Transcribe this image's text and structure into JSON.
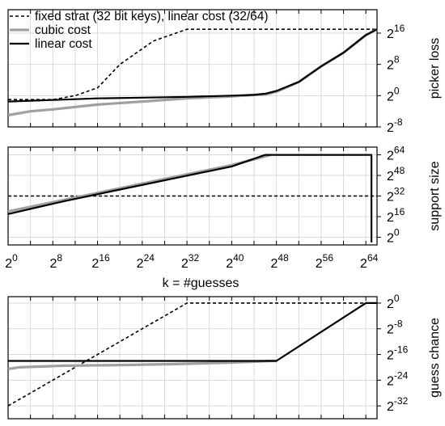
{
  "colors": {
    "fixed": "#000000",
    "cubic": "#a0a0a0",
    "linear": "#000000",
    "grid": "#d9d9d9",
    "frame": "#000000"
  },
  "legend": [
    {
      "key": "fixed",
      "label": "fixed strat (32 bit keys), linear cost (32/64)",
      "style": "dashed"
    },
    {
      "key": "cubic",
      "label": "cubic cost",
      "style": "solid-gray"
    },
    {
      "key": "linear",
      "label": "linear cost",
      "style": "solid-black"
    }
  ],
  "chart_data": [
    {
      "type": "line",
      "ylabel": "picker loss",
      "xlabel": "",
      "x_scale": "log2",
      "y_scale": "log2",
      "xlim_exp": [
        0,
        66
      ],
      "ylim_exp": [
        -8,
        22
      ],
      "x_ticks_exp": [
        0,
        8,
        16,
        24,
        32,
        40,
        48,
        56,
        64
      ],
      "y_ticks_exp": [
        16,
        8,
        0,
        -8
      ],
      "grid": true,
      "legend_position": "top-left",
      "series": [
        {
          "key": "fixed",
          "name": "fixed strat (32 bit keys), linear cost (32/64)",
          "points_exp": [
            [
              0,
              -1
            ],
            [
              8,
              -1
            ],
            [
              12,
              0
            ],
            [
              16,
              2
            ],
            [
              20,
              8
            ],
            [
              26,
              14
            ],
            [
              32,
              17
            ],
            [
              48,
              17
            ],
            [
              64,
              17
            ],
            [
              66,
              17
            ]
          ]
        },
        {
          "key": "cubic",
          "name": "cubic cost",
          "points_exp": [
            [
              0,
              -5
            ],
            [
              4,
              -4
            ],
            [
              8,
              -3.5
            ],
            [
              16,
              -2.3
            ],
            [
              24,
              -1.5
            ],
            [
              32,
              -0.7
            ],
            [
              40,
              -0.2
            ],
            [
              44,
              0.2
            ],
            [
              46,
              0.3
            ],
            [
              48,
              1
            ],
            [
              52,
              3.5
            ],
            [
              56,
              7.5
            ],
            [
              60,
              11
            ],
            [
              64,
              15.5
            ],
            [
              66,
              17
            ]
          ]
        },
        {
          "key": "linear",
          "name": "linear cost",
          "points_exp": [
            [
              0,
              -1.5
            ],
            [
              4,
              -1.3
            ],
            [
              8,
              -1.1
            ],
            [
              16,
              -0.7
            ],
            [
              24,
              -0.5
            ],
            [
              32,
              -0.3
            ],
            [
              40,
              0
            ],
            [
              44,
              0.2
            ],
            [
              46,
              0.5
            ],
            [
              48,
              1.2
            ],
            [
              52,
              3.5
            ],
            [
              56,
              7.5
            ],
            [
              60,
              11
            ],
            [
              64,
              15.5
            ],
            [
              66,
              17
            ]
          ]
        }
      ]
    },
    {
      "type": "line",
      "ylabel": "support size",
      "xlabel": "k = #guesses",
      "x_scale": "log2",
      "y_scale": "log2",
      "xlim_exp": [
        0,
        66
      ],
      "ylim_exp": [
        -6,
        70
      ],
      "x_ticks_exp": [
        0,
        8,
        16,
        24,
        32,
        40,
        48,
        56,
        64
      ],
      "y_ticks_exp": [
        64,
        48,
        32,
        16,
        0
      ],
      "grid": true,
      "series": [
        {
          "key": "fixed",
          "name": "fixed strat (32 bit keys), linear cost (32/64)",
          "points_exp": [
            [
              0,
              32
            ],
            [
              66,
              32
            ]
          ]
        },
        {
          "key": "cubic",
          "name": "cubic cost",
          "points_exp": [
            [
              0,
              20
            ],
            [
              10,
              29
            ],
            [
              20,
              38
            ],
            [
              30,
              47
            ],
            [
              40,
              56
            ],
            [
              47,
              64
            ]
          ]
        },
        {
          "key": "linear",
          "name": "linear cost",
          "points_exp": [
            [
              0,
              18
            ],
            [
              10,
              28
            ],
            [
              20,
              37
            ],
            [
              30,
              46
            ],
            [
              40,
              55
            ],
            [
              46,
              64
            ],
            [
              65,
              64
            ],
            [
              65,
              -4
            ]
          ]
        }
      ]
    },
    {
      "type": "line",
      "ylabel": "guess chance",
      "xlabel": "",
      "x_scale": "log2",
      "y_scale": "log2",
      "xlim_exp": [
        0,
        66
      ],
      "ylim_exp": [
        -36,
        2
      ],
      "x_ticks_exp": [
        0,
        8,
        16,
        24,
        32,
        40,
        48,
        56,
        64
      ],
      "y_ticks_exp": [
        0,
        -8,
        -16,
        -24,
        -32
      ],
      "grid": true,
      "series": [
        {
          "key": "fixed",
          "name": "fixed strat (32 bit keys), linear cost (32/64)",
          "points_exp": [
            [
              0,
              -32
            ],
            [
              32,
              0
            ],
            [
              66,
              0
            ]
          ]
        },
        {
          "key": "cubic",
          "name": "cubic cost",
          "points_exp": [
            [
              0,
              -20.5
            ],
            [
              2,
              -20
            ],
            [
              10,
              -19.5
            ],
            [
              20,
              -19.3
            ],
            [
              30,
              -19
            ],
            [
              40,
              -18.5
            ],
            [
              47,
              -18
            ],
            [
              48,
              -18
            ]
          ]
        },
        {
          "key": "linear",
          "name": "linear cost",
          "points_exp": [
            [
              0,
              -18
            ],
            [
              48,
              -18
            ],
            [
              64,
              0
            ],
            [
              66,
              0
            ]
          ]
        }
      ]
    }
  ]
}
